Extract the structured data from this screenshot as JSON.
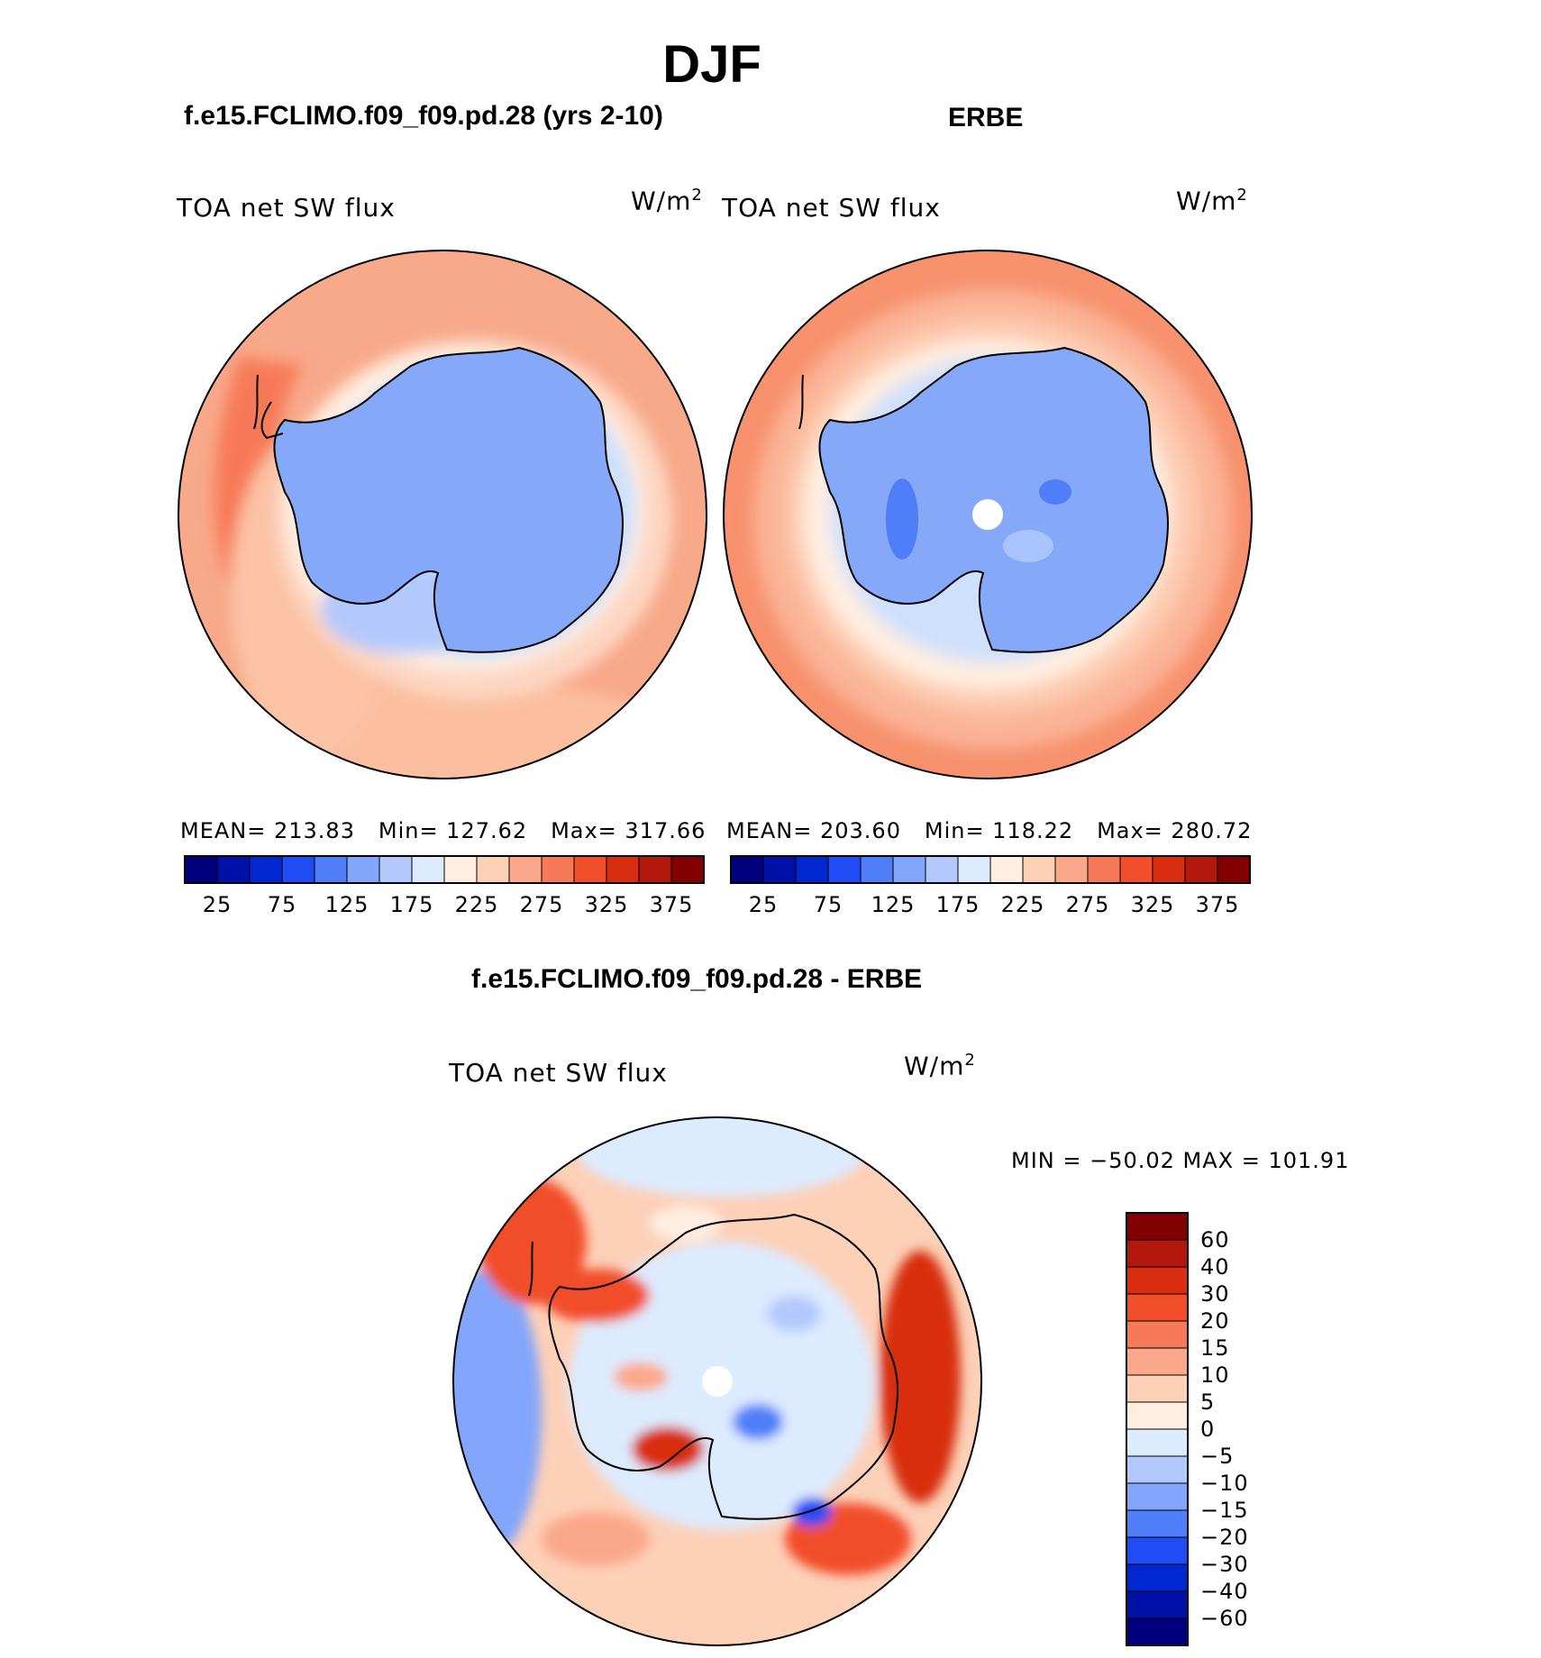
{
  "title": "DJF",
  "panels": {
    "model": {
      "title": "f.e15.FCLIMO.f09_f09.pd.28 (yrs 2-10)",
      "variable": "TOA net SW flux",
      "unit": "W/m",
      "unit_sup": "2",
      "mean": "MEAN= 213.83",
      "min": "Min= 127.62",
      "max": "Max= 317.66"
    },
    "obs": {
      "title": "ERBE",
      "variable": "TOA net SW flux",
      "unit": "W/m",
      "unit_sup": "2",
      "mean": "MEAN= 203.60",
      "min": "Min= 118.22",
      "max": "Max= 280.72"
    },
    "diff": {
      "title": "f.e15.FCLIMO.f09_f09.pd.28 - ERBE",
      "variable": "TOA net SW flux",
      "unit": "W/m",
      "unit_sup": "2",
      "minmax": "MIN = −50.02 MAX = 101.91"
    }
  },
  "colorbars": {
    "abs_ticks": [
      "25",
      "75",
      "125",
      "175",
      "225",
      "275",
      "325",
      "375"
    ],
    "abs_colors": [
      "#00007f",
      "#0011a8",
      "#0028d0",
      "#1f4cf4",
      "#4f7ef8",
      "#82a6fb",
      "#b3c9fd",
      "#ddebff",
      "#ffeee0",
      "#fdd0b8",
      "#fba88a",
      "#f77a58",
      "#f24e2a",
      "#d82d0e",
      "#b2180b",
      "#830000"
    ],
    "diff_labels": [
      "60",
      "40",
      "30",
      "20",
      "15",
      "10",
      "5",
      "0",
      "−5",
      "−10",
      "−15",
      "−20",
      "−30",
      "−40",
      "−60"
    ],
    "diff_colors": [
      "#830000",
      "#b2180b",
      "#d82d0e",
      "#f24e2a",
      "#f77a58",
      "#fba88a",
      "#fdd0b8",
      "#ffeee0",
      "#ddebff",
      "#b3c9fd",
      "#82a6fb",
      "#4f7ef8",
      "#1f4cf4",
      "#0028d0",
      "#0011a8",
      "#00007f"
    ]
  },
  "chart_data": [
    {
      "type": "heatmap",
      "title": "f.e15.FCLIMO.f09_f09.pd.28 (yrs 2-10)",
      "variable": "TOA net SW flux",
      "units": "W/m^2",
      "mean": 213.83,
      "min": 127.62,
      "max": 317.66,
      "levels": [
        25,
        50,
        75,
        100,
        125,
        150,
        175,
        200,
        225,
        250,
        275,
        300,
        325,
        350,
        375
      ]
    },
    {
      "type": "heatmap",
      "title": "ERBE",
      "variable": "TOA net SW flux",
      "units": "W/m^2",
      "mean": 203.6,
      "min": 118.22,
      "max": 280.72,
      "levels": [
        25,
        50,
        75,
        100,
        125,
        150,
        175,
        200,
        225,
        250,
        275,
        300,
        325,
        350,
        375
      ]
    },
    {
      "type": "heatmap",
      "title": "f.e15.FCLIMO.f09_f09.pd.28 - ERBE",
      "variable": "TOA net SW flux",
      "units": "W/m^2",
      "min": -50.02,
      "max": 101.91,
      "levels": [
        -60,
        -40,
        -30,
        -20,
        -15,
        -10,
        -5,
        0,
        5,
        10,
        15,
        20,
        30,
        40,
        60
      ]
    }
  ]
}
